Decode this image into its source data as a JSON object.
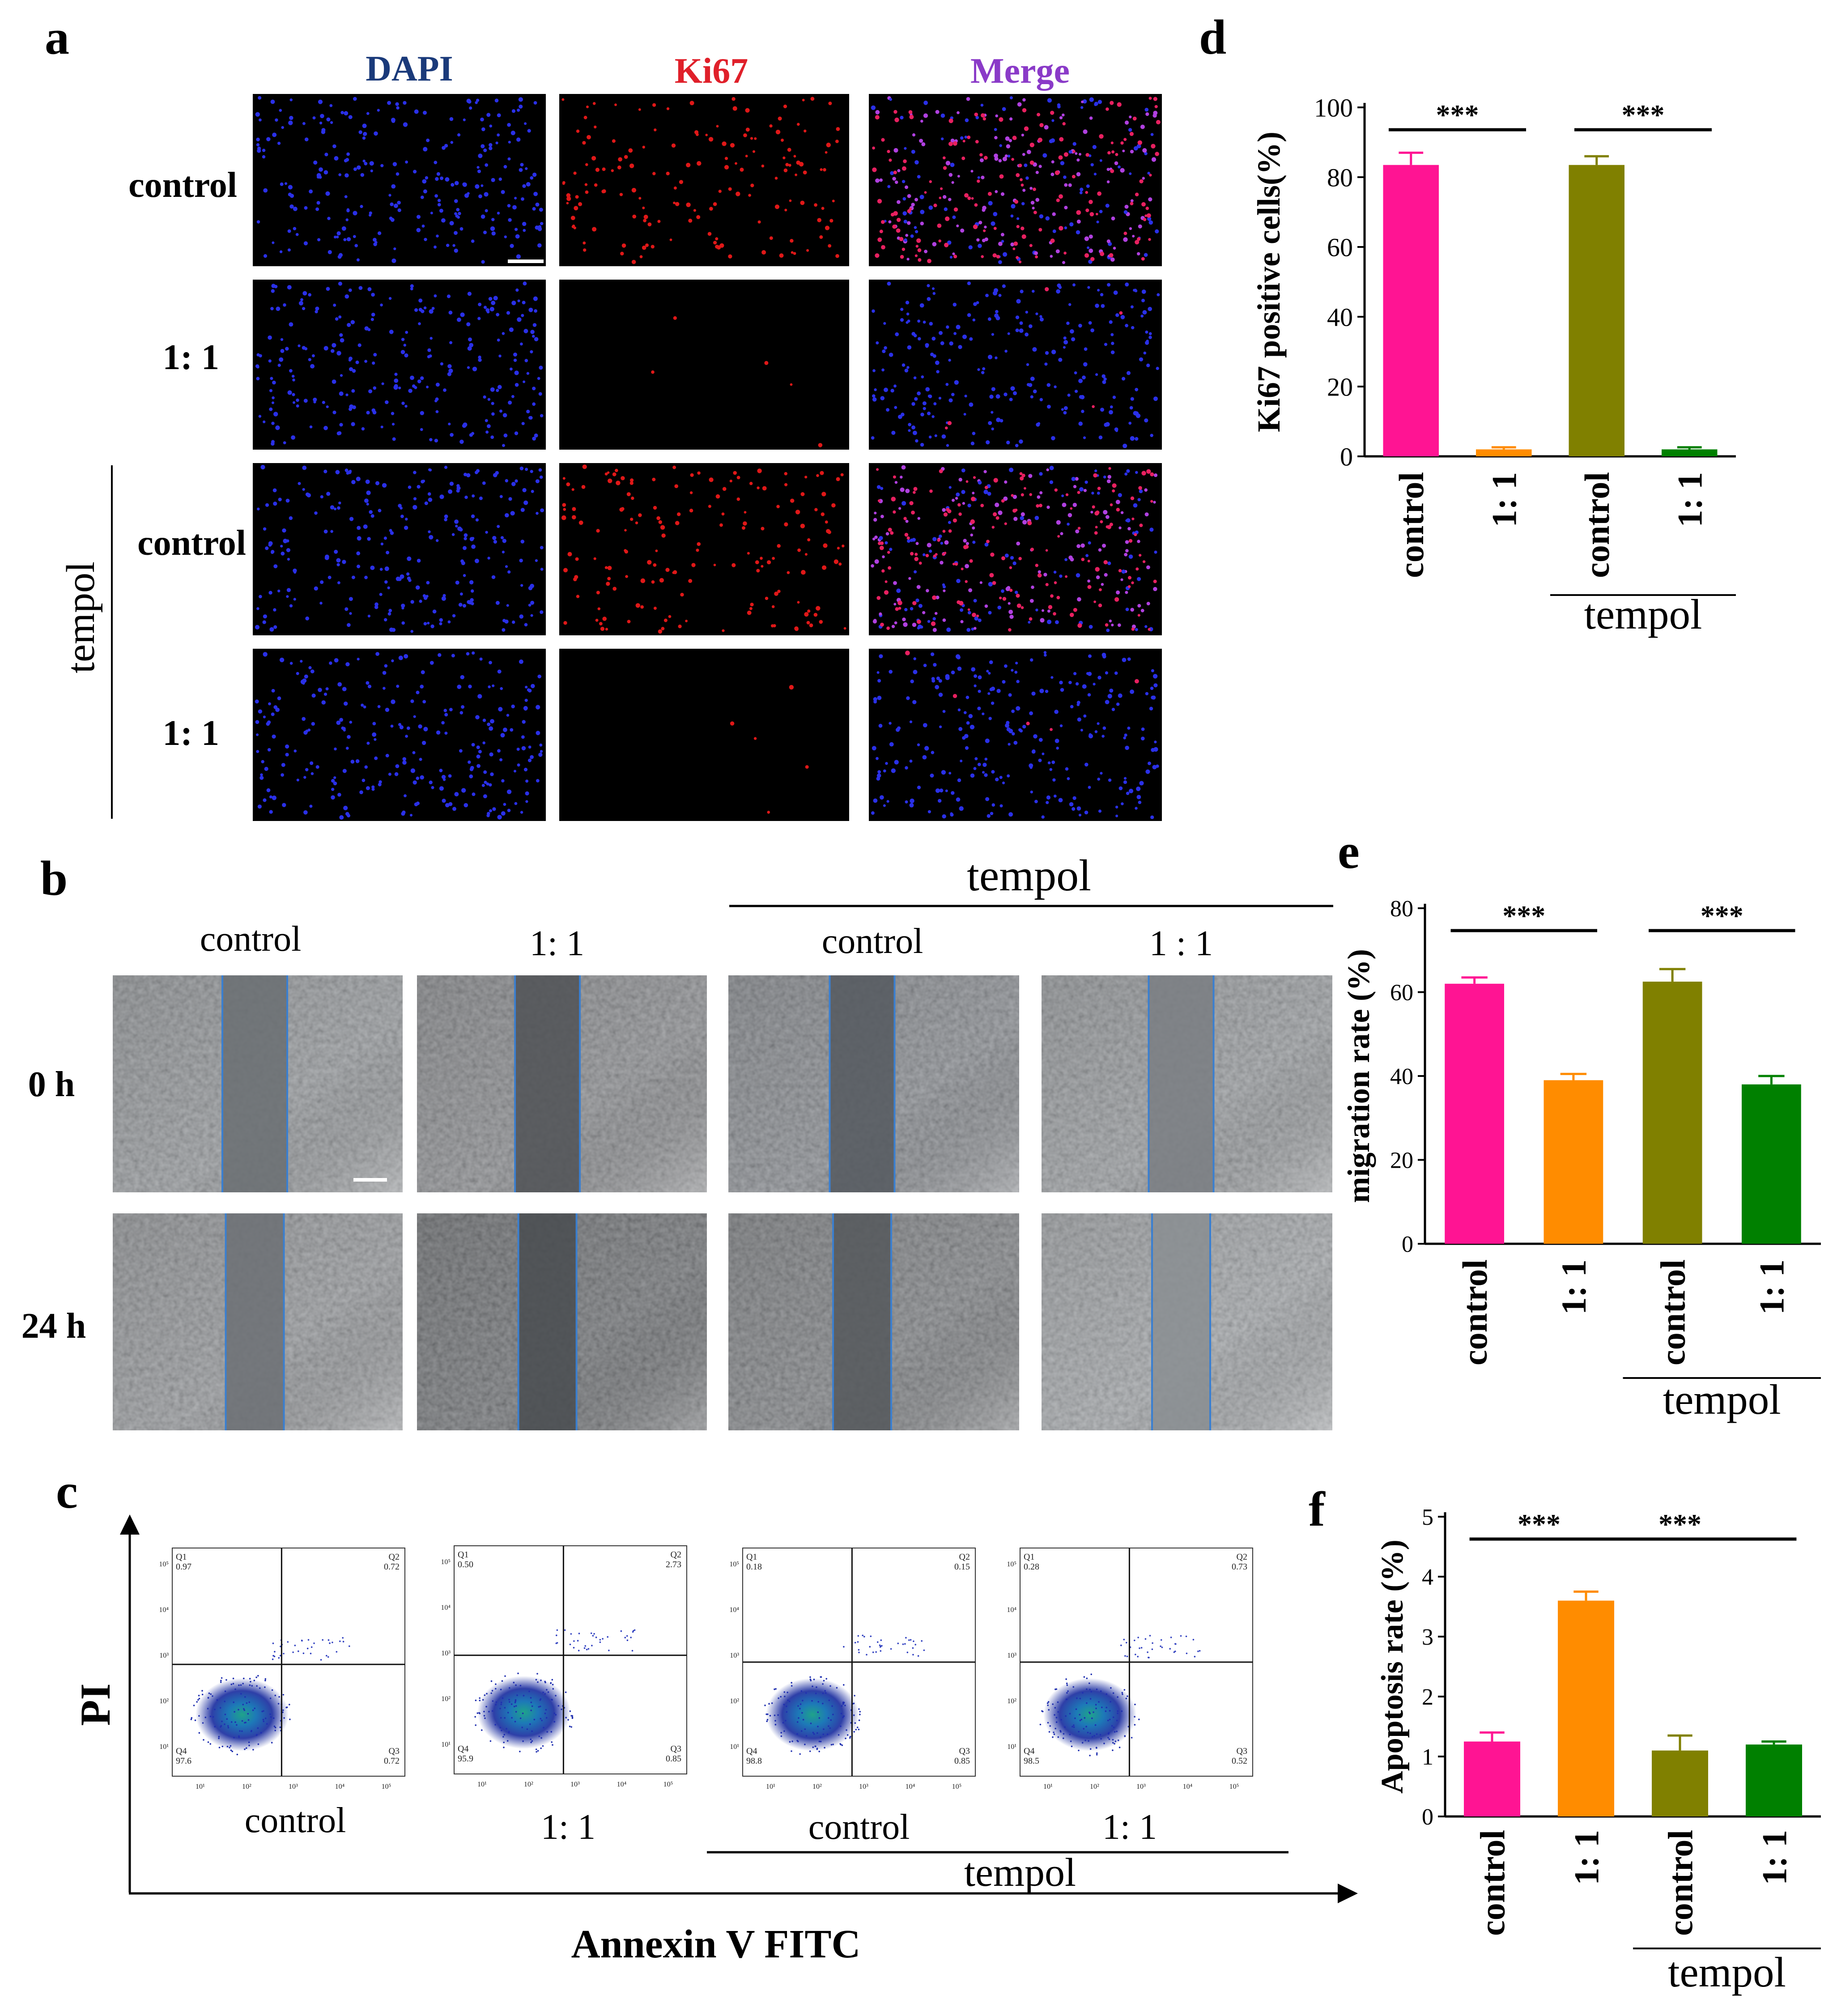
{
  "panel_letters": [
    "a",
    "b",
    "c",
    "d",
    "e",
    "f"
  ],
  "panel_a": {
    "channels": [
      "DAPI",
      "Ki67",
      "Merge"
    ],
    "channel_colors": [
      "#1a3a7a",
      "#e0202a",
      "#8a3ac8"
    ],
    "row_labels": [
      "control",
      "1: 1",
      "control",
      "1: 1"
    ],
    "group_label": "tempol"
  },
  "panel_b": {
    "columns": [
      "control",
      "1: 1",
      "control",
      "1 : 1"
    ],
    "rows": [
      "0 h",
      "24 h"
    ],
    "group_label": "tempol"
  },
  "panel_c": {
    "plots": [
      {
        "q1": "0.97",
        "q2": "0.72",
        "q3": "0.72",
        "q4": "97.6"
      },
      {
        "q1": "0.50",
        "q2": "2.73",
        "q3": "0.85",
        "q4": "95.9"
      },
      {
        "q1": "0.18",
        "q2": "0.15",
        "q3": "0.85",
        "q4": "98.8"
      },
      {
        "q1": "0.28",
        "q2": "0.73",
        "q3": "0.52",
        "q4": "98.5"
      }
    ],
    "quadrant_names": [
      "Q1",
      "Q2",
      "Q3",
      "Q4"
    ],
    "sample_labels": [
      "control",
      "1: 1",
      "control",
      "1: 1"
    ],
    "group_label": "tempol",
    "y_label": "PI",
    "x_label": "Annexin V FITC"
  },
  "chart_data": [
    {
      "panel": "d",
      "type": "bar",
      "categories": [
        "control",
        "1: 1",
        "control",
        "1: 1"
      ],
      "values": [
        83.5,
        2,
        83.5,
        2
      ],
      "errors": [
        3.5,
        0.6,
        2.5,
        0.6
      ],
      "colors": [
        "#ff1493",
        "#ff8c00",
        "#808000",
        "#008000"
      ],
      "ylabel": "Ki67 positive cells(%)",
      "ylim": [
        0,
        100
      ],
      "yticks": [
        0,
        20,
        40,
        60,
        80,
        100
      ],
      "group_label": "tempol",
      "significance": [
        {
          "from": 0,
          "to": 1,
          "label": "***"
        },
        {
          "from": 2,
          "to": 3,
          "label": "***"
        }
      ]
    },
    {
      "panel": "e",
      "type": "bar",
      "categories": [
        "control",
        "1: 1",
        "control",
        "1: 1"
      ],
      "values": [
        62,
        39,
        62.5,
        38
      ],
      "errors": [
        1.5,
        1.5,
        3,
        2
      ],
      "colors": [
        "#ff1493",
        "#ff8c00",
        "#808000",
        "#008000"
      ],
      "ylabel": "migration rate (%)",
      "ylim": [
        0,
        80
      ],
      "yticks": [
        0,
        20,
        40,
        60,
        80
      ],
      "group_label": "tempol",
      "significance": [
        {
          "from": 0,
          "to": 1,
          "label": "***"
        },
        {
          "from": 2,
          "to": 3,
          "label": "***"
        }
      ]
    },
    {
      "panel": "f",
      "type": "bar",
      "categories": [
        "control",
        "1: 1",
        "control",
        "1: 1"
      ],
      "values": [
        1.25,
        3.6,
        1.1,
        1.2
      ],
      "errors": [
        0.15,
        0.15,
        0.25,
        0.05
      ],
      "colors": [
        "#ff1493",
        "#ff8c00",
        "#808000",
        "#008000"
      ],
      "ylabel": "Apoptosis rate (%)",
      "ylim": [
        0,
        5
      ],
      "yticks": [
        0,
        1,
        2,
        3,
        4,
        5
      ],
      "group_label": "tempol",
      "significance": [
        {
          "from": 0,
          "to": 1,
          "label": "***"
        },
        {
          "from": 1,
          "to": 3,
          "label": "***"
        }
      ]
    }
  ]
}
